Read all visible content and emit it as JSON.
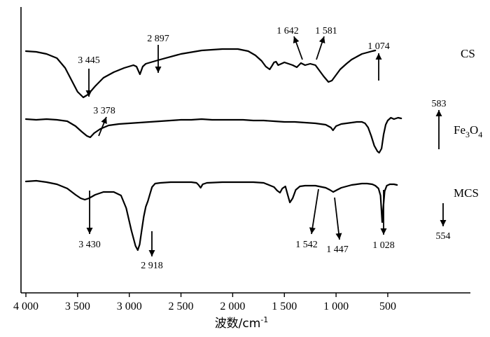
{
  "chart_data": {
    "type": "line",
    "xlabel": "波数/cm",
    "xlabel_sup": "-1",
    "x_reversed": true,
    "xlim": [
      4000,
      300
    ],
    "x_ticks": [
      4000,
      3500,
      3000,
      2500,
      2000,
      1500,
      1000,
      500
    ],
    "x_tick_labels": [
      "4 000",
      "3 500",
      "3 000",
      "2 500",
      "2 000",
      "1 500",
      "1 000",
      "500"
    ],
    "y_ticks_shown": false,
    "series": [
      {
        "name": "CS",
        "points": [
          [
            4000,
            0
          ],
          [
            3900,
            -1
          ],
          [
            3800,
            -4
          ],
          [
            3700,
            -10
          ],
          [
            3620,
            -24
          ],
          [
            3550,
            -44
          ],
          [
            3500,
            -58
          ],
          [
            3445,
            -66
          ],
          [
            3400,
            -62
          ],
          [
            3330,
            -50
          ],
          [
            3250,
            -38
          ],
          [
            3150,
            -30
          ],
          [
            3050,
            -24
          ],
          [
            2960,
            -20
          ],
          [
            2930,
            -22
          ],
          [
            2897,
            -33
          ],
          [
            2870,
            -22
          ],
          [
            2840,
            -18
          ],
          [
            2700,
            -12
          ],
          [
            2500,
            -4
          ],
          [
            2300,
            1
          ],
          [
            2100,
            3
          ],
          [
            1950,
            3
          ],
          [
            1850,
            0
          ],
          [
            1780,
            -6
          ],
          [
            1720,
            -14
          ],
          [
            1680,
            -22
          ],
          [
            1642,
            -26
          ],
          [
            1620,
            -21
          ],
          [
            1600,
            -16
          ],
          [
            1581,
            -15
          ],
          [
            1560,
            -20
          ],
          [
            1500,
            -16
          ],
          [
            1460,
            -18
          ],
          [
            1420,
            -20
          ],
          [
            1380,
            -23
          ],
          [
            1340,
            -17
          ],
          [
            1300,
            -20
          ],
          [
            1250,
            -18
          ],
          [
            1200,
            -20
          ],
          [
            1160,
            -28
          ],
          [
            1120,
            -36
          ],
          [
            1074,
            -44
          ],
          [
            1040,
            -42
          ],
          [
            1000,
            -34
          ],
          [
            960,
            -26
          ],
          [
            900,
            -18
          ],
          [
            850,
            -12
          ],
          [
            800,
            -8
          ],
          [
            750,
            -4
          ],
          [
            700,
            -2
          ],
          [
            650,
            0
          ],
          [
            620,
            1
          ]
        ]
      },
      {
        "name": "Fe3O4",
        "name_parts": [
          "Fe",
          "3",
          "O",
          "4"
        ],
        "points": [
          [
            4000,
            0
          ],
          [
            3900,
            -1
          ],
          [
            3800,
            0
          ],
          [
            3700,
            -1
          ],
          [
            3600,
            -3
          ],
          [
            3520,
            -10
          ],
          [
            3460,
            -18
          ],
          [
            3410,
            -24
          ],
          [
            3378,
            -26
          ],
          [
            3340,
            -20
          ],
          [
            3280,
            -14
          ],
          [
            3200,
            -9
          ],
          [
            3100,
            -7
          ],
          [
            3000,
            -6
          ],
          [
            2900,
            -5
          ],
          [
            2800,
            -4
          ],
          [
            2700,
            -3
          ],
          [
            2600,
            -2
          ],
          [
            2500,
            -1
          ],
          [
            2400,
            -1
          ],
          [
            2300,
            0
          ],
          [
            2200,
            -1
          ],
          [
            2100,
            -1
          ],
          [
            2000,
            -1
          ],
          [
            1900,
            -1
          ],
          [
            1800,
            -2
          ],
          [
            1700,
            -2
          ],
          [
            1600,
            -3
          ],
          [
            1500,
            -4
          ],
          [
            1400,
            -4
          ],
          [
            1300,
            -5
          ],
          [
            1200,
            -6
          ],
          [
            1100,
            -8
          ],
          [
            1050,
            -12
          ],
          [
            1030,
            -16
          ],
          [
            1000,
            -10
          ],
          [
            950,
            -7
          ],
          [
            900,
            -6
          ],
          [
            850,
            -5
          ],
          [
            800,
            -4
          ],
          [
            750,
            -4
          ],
          [
            720,
            -6
          ],
          [
            690,
            -12
          ],
          [
            660,
            -24
          ],
          [
            630,
            -38
          ],
          [
            600,
            -46
          ],
          [
            583,
            -48
          ],
          [
            560,
            -42
          ],
          [
            540,
            -22
          ],
          [
            520,
            -8
          ],
          [
            500,
            -2
          ],
          [
            470,
            2
          ],
          [
            440,
            0
          ],
          [
            400,
            2
          ],
          [
            370,
            1
          ]
        ]
      },
      {
        "name": "MCS",
        "points": [
          [
            4000,
            0
          ],
          [
            3900,
            1
          ],
          [
            3800,
            -1
          ],
          [
            3700,
            -4
          ],
          [
            3600,
            -10
          ],
          [
            3520,
            -19
          ],
          [
            3470,
            -24
          ],
          [
            3430,
            -26
          ],
          [
            3390,
            -24
          ],
          [
            3330,
            -19
          ],
          [
            3250,
            -15
          ],
          [
            3150,
            -15
          ],
          [
            3080,
            -20
          ],
          [
            3030,
            -38
          ],
          [
            2980,
            -70
          ],
          [
            2940,
            -92
          ],
          [
            2918,
            -98
          ],
          [
            2900,
            -90
          ],
          [
            2880,
            -70
          ],
          [
            2860,
            -50
          ],
          [
            2840,
            -36
          ],
          [
            2820,
            -28
          ],
          [
            2800,
            -18
          ],
          [
            2780,
            -8
          ],
          [
            2750,
            -3
          ],
          [
            2700,
            -2
          ],
          [
            2600,
            -1
          ],
          [
            2500,
            -1
          ],
          [
            2400,
            -1
          ],
          [
            2350,
            -2
          ],
          [
            2330,
            -5
          ],
          [
            2310,
            -9
          ],
          [
            2290,
            -4
          ],
          [
            2250,
            -2
          ],
          [
            2100,
            -1
          ],
          [
            1900,
            -1
          ],
          [
            1800,
            -1
          ],
          [
            1700,
            -2
          ],
          [
            1650,
            -5
          ],
          [
            1600,
            -8
          ],
          [
            1570,
            -13
          ],
          [
            1542,
            -16
          ],
          [
            1520,
            -10
          ],
          [
            1490,
            -7
          ],
          [
            1470,
            -18
          ],
          [
            1447,
            -30
          ],
          [
            1420,
            -24
          ],
          [
            1390,
            -12
          ],
          [
            1350,
            -7
          ],
          [
            1300,
            -6
          ],
          [
            1200,
            -6
          ],
          [
            1100,
            -9
          ],
          [
            1060,
            -12
          ],
          [
            1028,
            -15
          ],
          [
            990,
            -12
          ],
          [
            950,
            -9
          ],
          [
            900,
            -7
          ],
          [
            850,
            -5
          ],
          [
            800,
            -4
          ],
          [
            750,
            -3
          ],
          [
            700,
            -3
          ],
          [
            650,
            -4
          ],
          [
            620,
            -6
          ],
          [
            590,
            -10
          ],
          [
            570,
            -20
          ],
          [
            554,
            -58
          ],
          [
            545,
            -40
          ],
          [
            530,
            -14
          ],
          [
            510,
            -6
          ],
          [
            480,
            -4
          ],
          [
            440,
            -4
          ],
          [
            410,
            -5
          ]
        ]
      }
    ],
    "annotations": [
      {
        "series": "CS",
        "label": "3 445",
        "x": 3445
      },
      {
        "series": "CS",
        "label": "2 897",
        "x": 2897
      },
      {
        "series": "CS",
        "label": "1 642",
        "x": 1642
      },
      {
        "series": "CS",
        "label": "1 581",
        "x": 1581
      },
      {
        "series": "CS",
        "label": "1 074",
        "x": 1074
      },
      {
        "series": "Fe3O4",
        "label": "3 378",
        "x": 3378
      },
      {
        "series": "Fe3O4",
        "label": "583",
        "x": 583
      },
      {
        "series": "MCS",
        "label": "3 430",
        "x": 3430
      },
      {
        "series": "MCS",
        "label": "2 918",
        "x": 2918
      },
      {
        "series": "MCS",
        "label": "1 542",
        "x": 1542
      },
      {
        "series": "MCS",
        "label": "1 447",
        "x": 1447
      },
      {
        "series": "MCS",
        "label": "1 028",
        "x": 1028
      },
      {
        "series": "MCS",
        "label": "554",
        "x": 554
      }
    ]
  }
}
